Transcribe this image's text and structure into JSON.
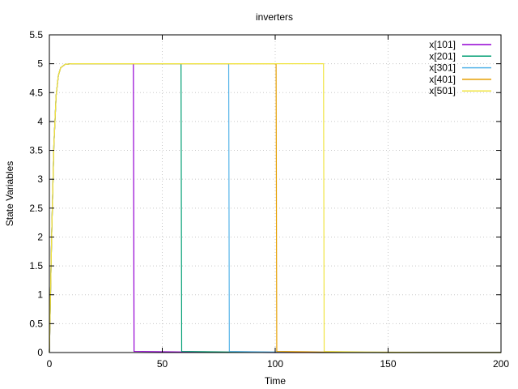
{
  "chart_data": {
    "type": "line",
    "title": "inverters",
    "xlabel": "Time",
    "ylabel": "State Variables",
    "xlim": [
      0,
      200
    ],
    "ylim": [
      0,
      5.5
    ],
    "xticks": [
      "0",
      "50",
      "100",
      "150",
      "200"
    ],
    "yticks": [
      "0",
      "0.5",
      "1",
      "1.5",
      "2",
      "2.5",
      "3",
      "3.5",
      "4",
      "4.5",
      "5",
      "5.5"
    ],
    "xtick_values": [
      0,
      50,
      100,
      150,
      200
    ],
    "ytick_values": [
      0,
      0.5,
      1,
      1.5,
      2,
      2.5,
      3,
      3.5,
      4,
      4.5,
      5,
      5.5
    ],
    "grid": true,
    "legend_position": "top-right",
    "series": [
      {
        "name": "x[101]",
        "color": "#9400d3",
        "x": [
          0,
          1,
          2,
          3,
          4,
          5,
          7,
          10,
          20,
          37.2,
          37.5,
          60,
          100,
          200
        ],
        "y": [
          0,
          2.0,
          3.6,
          4.45,
          4.8,
          4.93,
          4.99,
          5.0,
          5.0,
          5.0,
          0.02,
          0.01,
          0.0,
          0.0
        ]
      },
      {
        "name": "x[201]",
        "color": "#009e73",
        "x": [
          0,
          1,
          2,
          3,
          4,
          5,
          7,
          10,
          20,
          58.3,
          58.6,
          80,
          120,
          200
        ],
        "y": [
          0,
          2.0,
          3.6,
          4.45,
          4.8,
          4.93,
          4.99,
          5.0,
          5.0,
          5.0,
          0.02,
          0.01,
          0.0,
          0.0
        ]
      },
      {
        "name": "x[301]",
        "color": "#56b4e9",
        "x": [
          0,
          1,
          2,
          3,
          4,
          5,
          7,
          10,
          20,
          79.4,
          79.7,
          100,
          150,
          200
        ],
        "y": [
          0,
          2.0,
          3.6,
          4.45,
          4.8,
          4.93,
          4.99,
          5.0,
          5.0,
          5.0,
          0.02,
          0.01,
          0.0,
          0.0
        ]
      },
      {
        "name": "x[401]",
        "color": "#e69f00",
        "x": [
          0,
          1,
          2,
          3,
          4,
          5,
          7,
          10,
          20,
          100.4,
          100.7,
          120,
          150,
          200
        ],
        "y": [
          0,
          2.0,
          3.6,
          4.45,
          4.8,
          4.93,
          4.99,
          5.0,
          5.0,
          5.0,
          0.02,
          0.01,
          0.0,
          0.0
        ]
      },
      {
        "name": "x[501]",
        "color": "#f0e442",
        "x": [
          0,
          1,
          2,
          3,
          4,
          5,
          7,
          10,
          20,
          121.4,
          121.7,
          140,
          170,
          200
        ],
        "y": [
          0,
          2.0,
          3.6,
          4.45,
          4.8,
          4.93,
          4.99,
          5.0,
          5.0,
          5.0,
          0.02,
          0.01,
          0.0,
          0.0
        ]
      }
    ]
  }
}
